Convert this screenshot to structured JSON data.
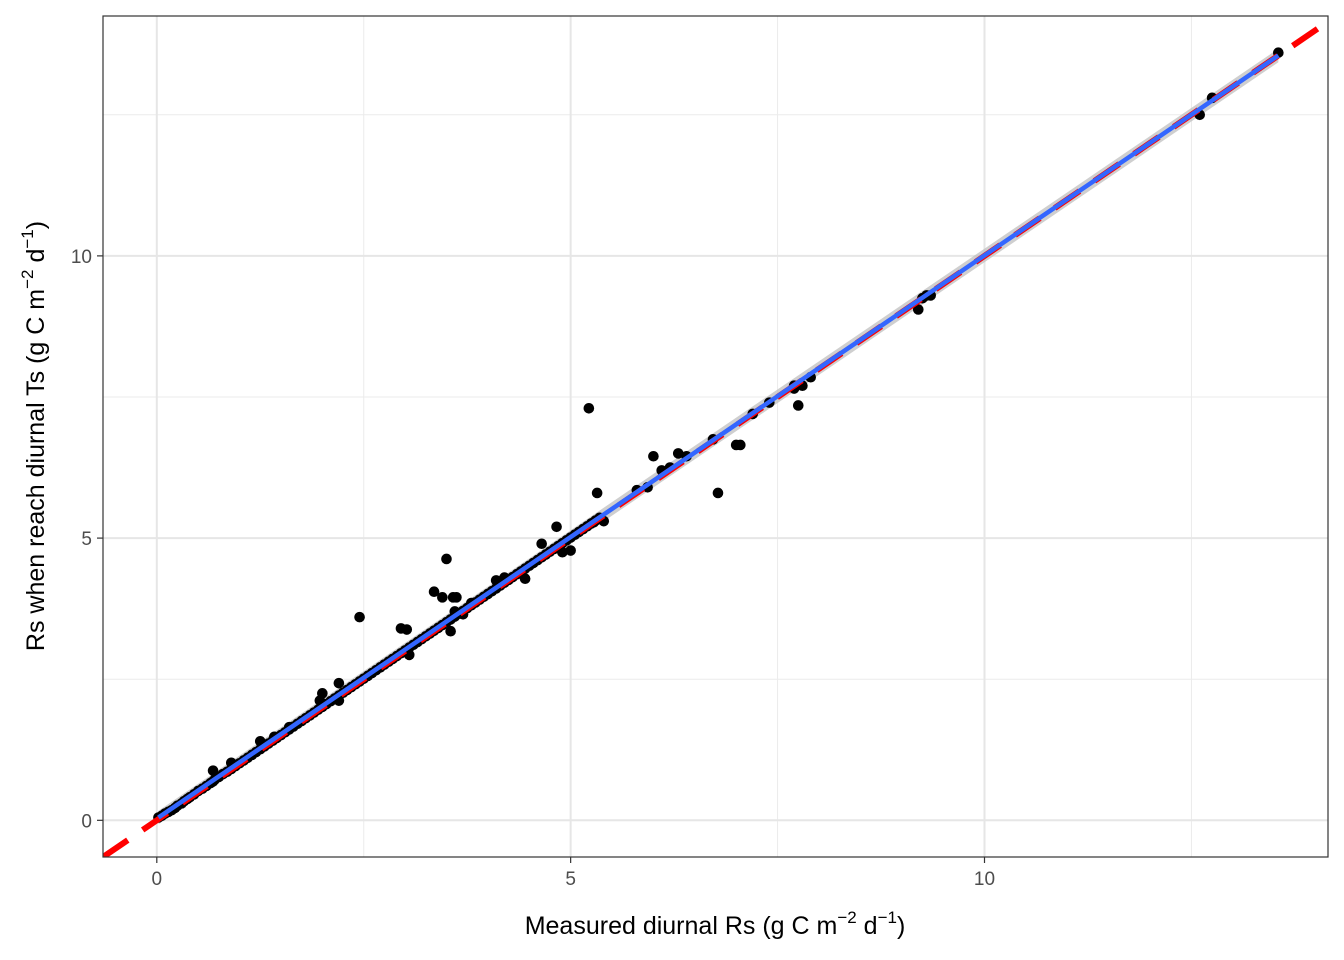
{
  "chart_data": {
    "type": "scatter",
    "xlabel": {
      "base": "Measured diurnal Rs (g C m",
      "exp1": "−2",
      "mid": " d",
      "exp2": "−1",
      "end": ")"
    },
    "ylabel": {
      "base": "Rs when reach diurnal Ts (g C m",
      "exp1": "−2",
      "mid": " d",
      "exp2": "−1",
      "end": ")"
    },
    "xlim": [
      -0.65,
      14.15
    ],
    "ylim": [
      -0.65,
      14.25
    ],
    "x_ticks": [
      0,
      5,
      10
    ],
    "x_tick_labels": [
      "0",
      "5",
      "10"
    ],
    "y_ticks": [
      0,
      5,
      10
    ],
    "y_tick_labels": [
      "0",
      "5",
      "10"
    ],
    "x_minor_ticks": [
      2.5,
      7.5,
      12.5
    ],
    "y_minor_ticks": [
      2.5,
      7.5,
      12.5
    ],
    "grid": true,
    "reference_line": {
      "kind": "1:1",
      "slope": 1,
      "intercept": 0,
      "color": "#ff0000",
      "style": "dashed"
    },
    "fit_line": {
      "kind": "linear",
      "x": [
        0.02,
        13.55
      ],
      "y": [
        0.05,
        13.55
      ],
      "color": "#3366ff",
      "band_color": "#bfbfbf"
    },
    "points": {
      "color": "#000000",
      "x": [
        0.02,
        0.06,
        0.1,
        0.14,
        0.18,
        0.22,
        0.25,
        0.3,
        0.33,
        0.37,
        0.4,
        0.45,
        0.5,
        0.55,
        0.6,
        0.65,
        0.68,
        0.7,
        0.75,
        0.8,
        0.85,
        0.9,
        0.95,
        1.0,
        1.05,
        1.1,
        1.15,
        1.2,
        1.25,
        1.3,
        1.35,
        1.4,
        1.45,
        1.5,
        1.55,
        1.6,
        1.65,
        1.7,
        1.75,
        1.8,
        1.85,
        1.9,
        1.95,
        2.0,
        2.05,
        2.1,
        2.15,
        2.2,
        2.25,
        2.3,
        2.35,
        2.4,
        2.45,
        2.5,
        2.55,
        2.6,
        2.65,
        2.7,
        2.75,
        2.8,
        2.85,
        2.9,
        2.95,
        3.0,
        3.05,
        3.1,
        3.15,
        3.2,
        3.25,
        3.3,
        3.35,
        3.4,
        3.45,
        3.5,
        3.55,
        3.6,
        3.65,
        3.7,
        3.75,
        3.8,
        3.85,
        3.9,
        3.95,
        4.0,
        4.05,
        4.1,
        4.15,
        4.2,
        4.25,
        4.3,
        4.35,
        4.4,
        4.45,
        4.5,
        4.55,
        4.6,
        4.65,
        4.7,
        4.75,
        4.8,
        4.85,
        4.9,
        4.95,
        5.0,
        5.05,
        5.1,
        5.15,
        5.2,
        5.25,
        5.3,
        5.35,
        0.68,
        0.9,
        1.25,
        1.42,
        1.6,
        1.97,
        2.0,
        2.2,
        2.2,
        2.45,
        2.95,
        3.02,
        3.05,
        3.35,
        3.45,
        3.5,
        3.55,
        3.58,
        3.6,
        3.62,
        3.7,
        3.8,
        4.1,
        4.2,
        4.45,
        4.65,
        4.83,
        4.9,
        5.22,
        5.28,
        5.32,
        5.4,
        5.0,
        5.8,
        5.93,
        6.0,
        6.1,
        6.2,
        6.3,
        6.4,
        6.72,
        6.78,
        7.0,
        7.05,
        7.2,
        7.4,
        7.7,
        7.75,
        7.8,
        7.9,
        7.7,
        9.2,
        9.3,
        9.35,
        9.25,
        12.6,
        12.75,
        13.55
      ],
      "y": [
        0.05,
        0.08,
        0.12,
        0.15,
        0.18,
        0.22,
        0.26,
        0.3,
        0.34,
        0.38,
        0.41,
        0.46,
        0.52,
        0.56,
        0.61,
        0.66,
        0.69,
        0.72,
        0.77,
        0.82,
        0.86,
        0.91,
        0.96,
        1.01,
        1.06,
        1.11,
        1.16,
        1.21,
        1.26,
        1.31,
        1.36,
        1.41,
        1.46,
        1.51,
        1.56,
        1.61,
        1.66,
        1.71,
        1.76,
        1.81,
        1.86,
        1.91,
        1.96,
        2.01,
        2.06,
        2.11,
        2.16,
        2.21,
        2.26,
        2.31,
        2.36,
        2.41,
        2.46,
        2.51,
        2.56,
        2.61,
        2.66,
        2.71,
        2.76,
        2.81,
        2.86,
        2.91,
        2.96,
        3.01,
        3.06,
        3.11,
        3.16,
        3.21,
        3.26,
        3.31,
        3.36,
        3.41,
        3.46,
        3.51,
        3.56,
        3.61,
        3.66,
        3.71,
        3.76,
        3.81,
        3.86,
        3.91,
        3.96,
        4.01,
        4.06,
        4.11,
        4.16,
        4.21,
        4.26,
        4.31,
        4.36,
        4.41,
        4.46,
        4.51,
        4.56,
        4.61,
        4.66,
        4.71,
        4.76,
        4.81,
        4.86,
        4.91,
        4.96,
        5.01,
        5.06,
        5.11,
        5.16,
        5.21,
        5.26,
        5.31,
        5.36,
        0.88,
        1.02,
        1.4,
        1.48,
        1.65,
        2.12,
        2.25,
        2.43,
        2.12,
        3.6,
        3.4,
        3.38,
        2.93,
        4.05,
        3.95,
        4.63,
        3.35,
        3.95,
        3.7,
        3.95,
        3.65,
        3.85,
        4.25,
        4.3,
        4.28,
        4.9,
        5.2,
        4.75,
        7.3,
        5.28,
        5.8,
        5.3,
        4.78,
        5.85,
        5.9,
        6.45,
        6.2,
        6.25,
        6.5,
        6.45,
        6.75,
        5.8,
        6.65,
        6.65,
        7.2,
        7.4,
        7.65,
        7.35,
        7.7,
        7.85,
        7.7,
        9.05,
        9.3,
        9.3,
        9.25,
        12.5,
        12.8,
        13.6
      ]
    }
  }
}
